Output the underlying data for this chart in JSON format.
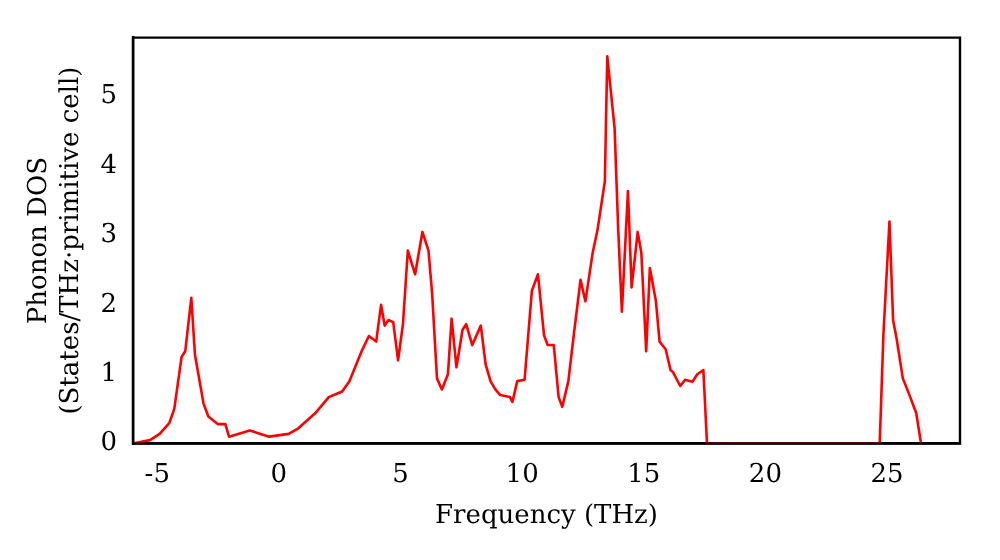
{
  "chart_data": {
    "type": "line",
    "xlabel": "Frequency (THz)",
    "ylabel": "Phonon DOS\n(States/THz·primitive cell)",
    "xlim": [
      -6,
      28
    ],
    "xticks": [
      -5,
      0,
      5,
      10,
      15,
      20,
      25
    ],
    "ylim": [
      0,
      5.85
    ],
    "yticks": [
      0,
      1,
      2,
      3,
      4,
      5
    ],
    "grid": false,
    "legend": false,
    "marker": "none",
    "line_style": "solid",
    "series": [
      {
        "color": "#ff0000",
        "x": [
          -6.0,
          -5.3,
          -4.9,
          -4.5,
          -4.3,
          -4.0,
          -3.85,
          -3.6,
          -3.45,
          -3.1,
          -2.9,
          -2.5,
          -2.2,
          -2.05,
          -1.2,
          -0.4,
          0.4,
          0.8,
          1.5,
          2.05,
          2.6,
          2.9,
          3.4,
          3.7,
          4.0,
          4.2,
          4.35,
          4.5,
          4.7,
          4.9,
          5.1,
          5.3,
          5.6,
          5.9,
          6.15,
          6.3,
          6.5,
          6.7,
          6.95,
          7.1,
          7.3,
          7.55,
          7.7,
          7.95,
          8.3,
          8.5,
          8.7,
          8.9,
          9.1,
          9.5,
          9.6,
          9.8,
          10.1,
          10.4,
          10.65,
          10.9,
          11.05,
          11.3,
          11.5,
          11.65,
          11.9,
          12.1,
          12.4,
          12.6,
          12.9,
          13.1,
          13.4,
          13.5,
          13.8,
          13.95,
          14.1,
          14.35,
          14.5,
          14.75,
          14.9,
          15.1,
          15.25,
          15.5,
          15.65,
          15.9,
          16.1,
          16.2,
          16.5,
          16.7,
          17.0,
          17.2,
          17.45,
          17.6,
          24.7,
          24.85,
          25.1,
          25.25,
          25.4,
          25.65,
          25.9,
          26.2,
          26.4
        ],
        "values": [
          0,
          0.05,
          0.14,
          0.3,
          0.5,
          1.25,
          1.33,
          2.1,
          1.28,
          0.58,
          0.39,
          0.28,
          0.28,
          0.1,
          0.19,
          0.1,
          0.14,
          0.22,
          0.44,
          0.67,
          0.75,
          0.9,
          1.33,
          1.55,
          1.47,
          2.0,
          1.7,
          1.78,
          1.75,
          1.2,
          1.72,
          2.78,
          2.44,
          3.05,
          2.78,
          2.16,
          0.94,
          0.78,
          1.0,
          1.8,
          1.1,
          1.64,
          1.72,
          1.42,
          1.7,
          1.14,
          0.9,
          0.78,
          0.7,
          0.67,
          0.6,
          0.9,
          0.92,
          2.2,
          2.44,
          1.56,
          1.42,
          1.42,
          0.67,
          0.53,
          0.9,
          1.5,
          2.36,
          2.05,
          2.75,
          3.08,
          3.78,
          5.58,
          4.55,
          3.08,
          1.9,
          3.64,
          2.25,
          3.05,
          2.75,
          1.33,
          2.53,
          2.05,
          1.47,
          1.36,
          1.06,
          1.03,
          0.83,
          0.92,
          0.89,
          1.0,
          1.06,
          0,
          0,
          1.56,
          3.2,
          1.78,
          1.5,
          0.94,
          0.72,
          0.44,
          0
        ]
      }
    ]
  }
}
